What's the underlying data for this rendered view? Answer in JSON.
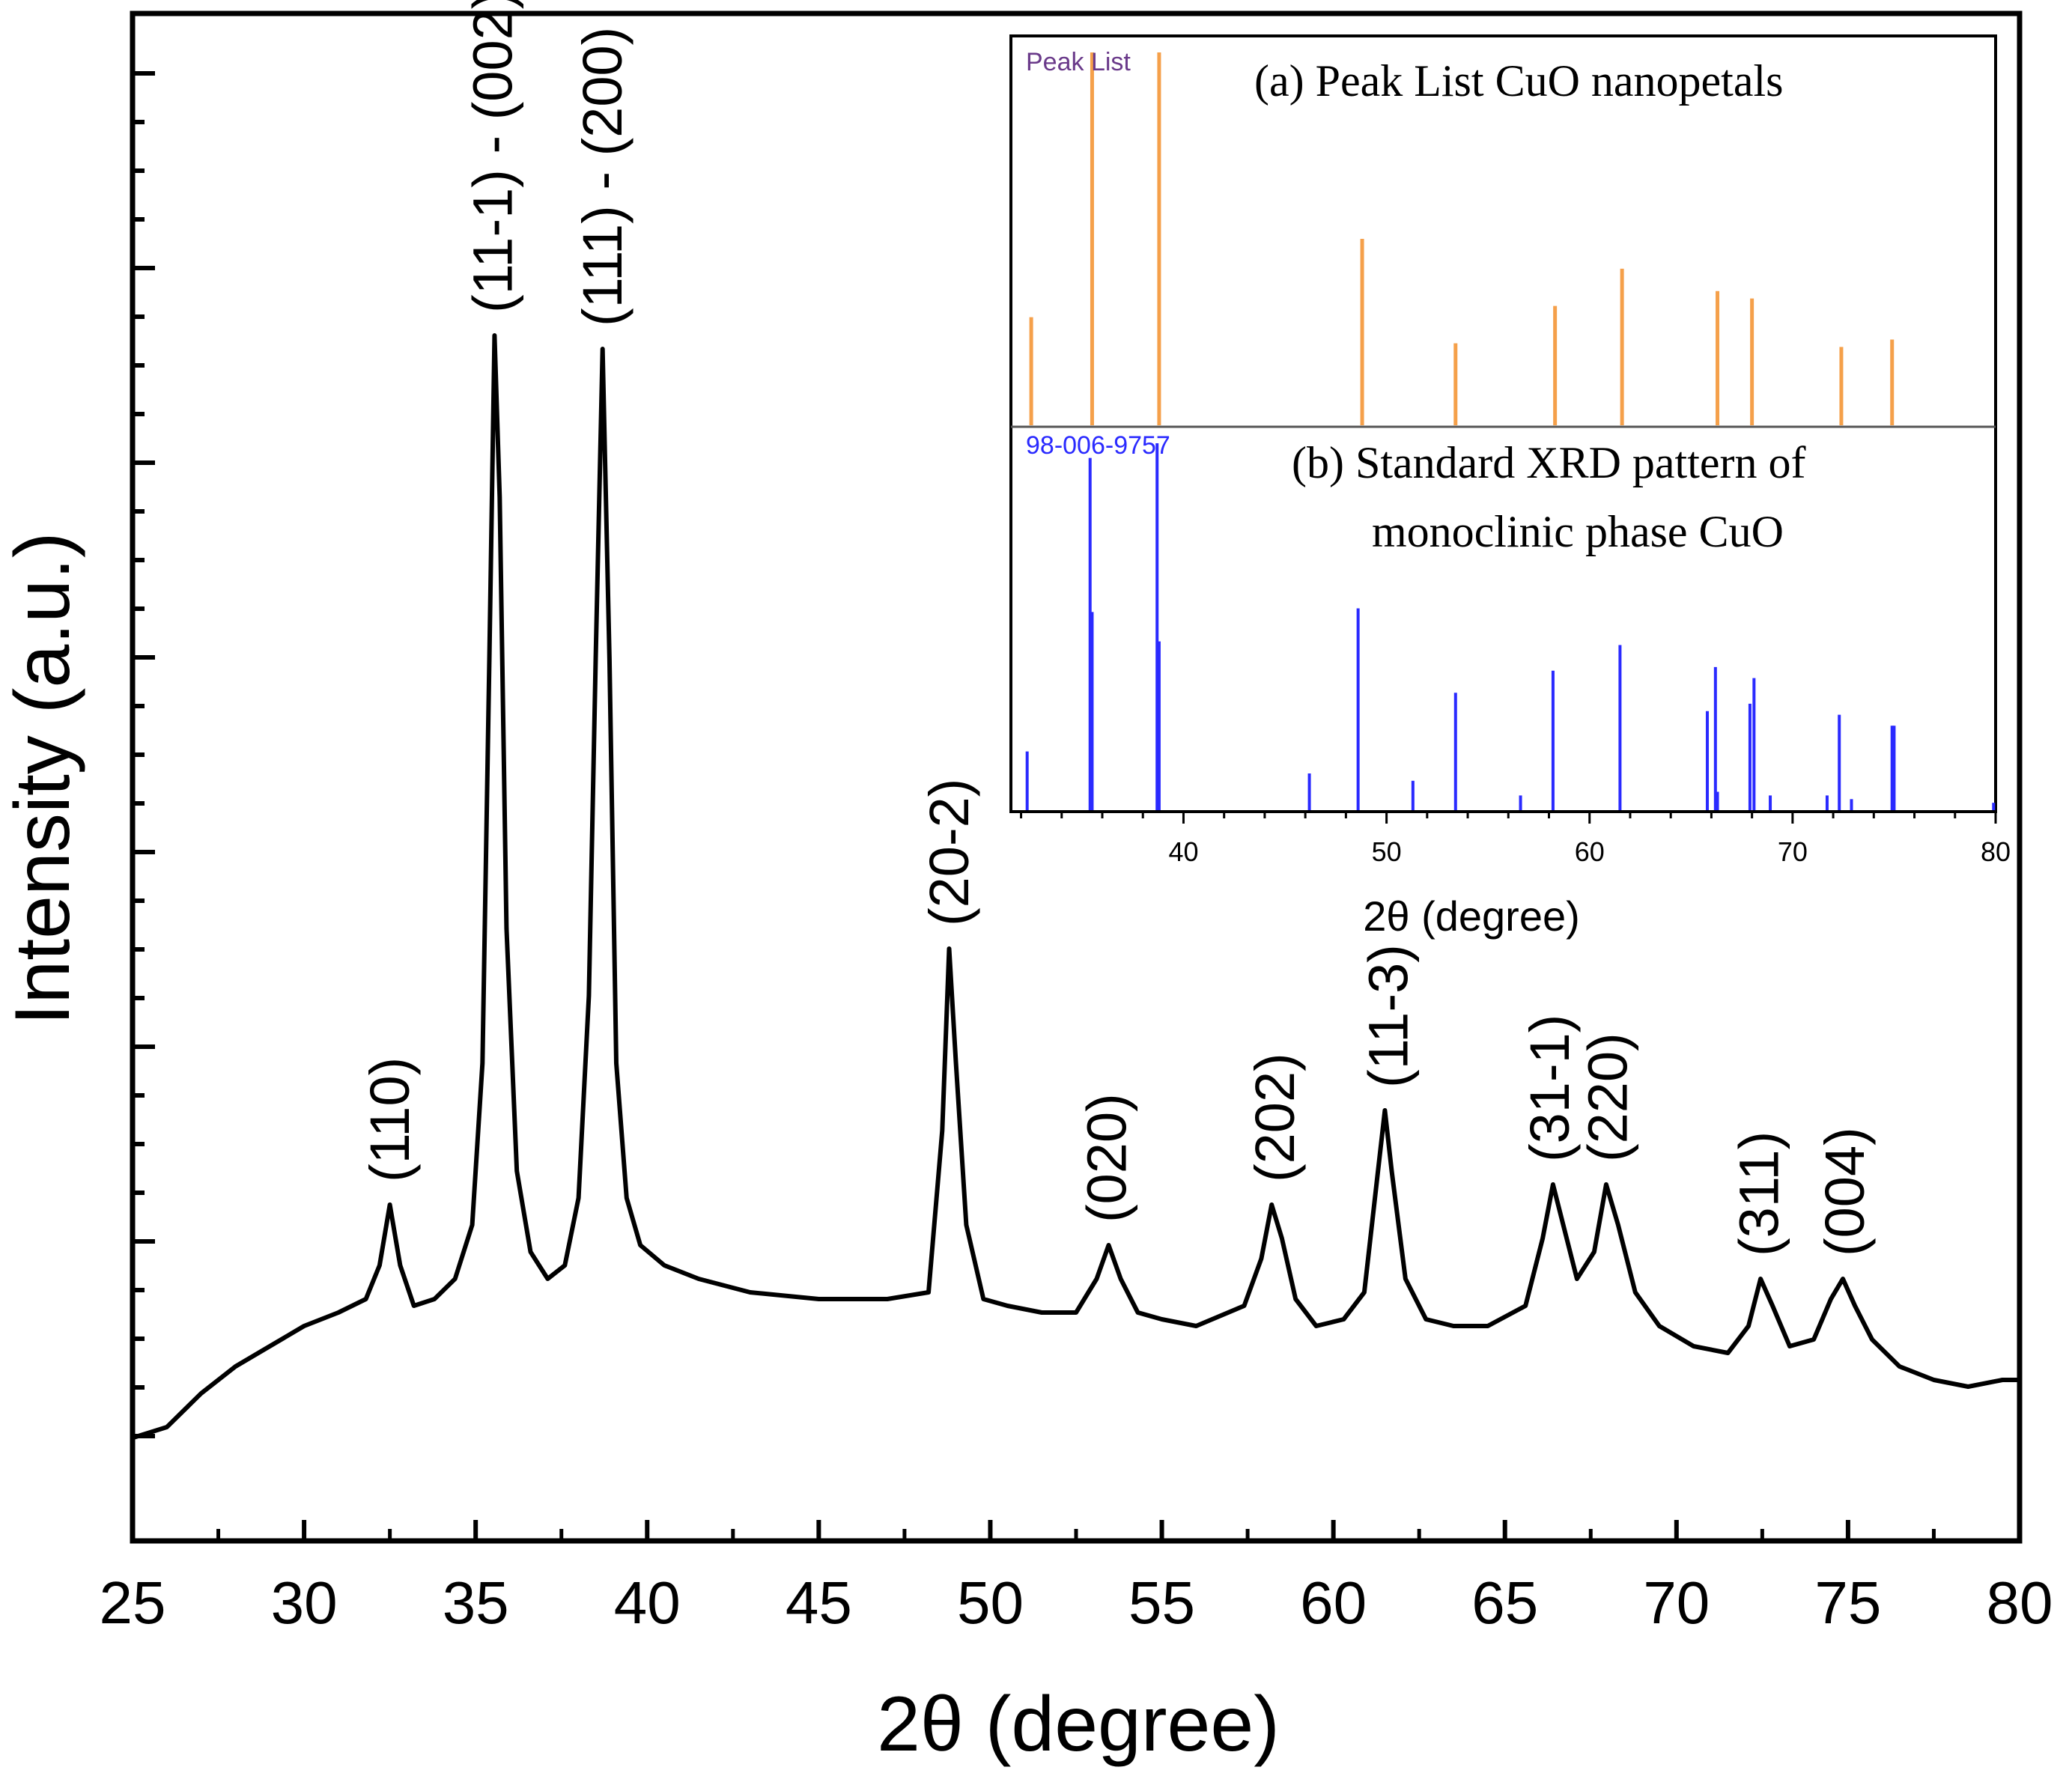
{
  "chart_data": [
    {
      "type": "line",
      "name": "main",
      "xlabel": "2θ (degree)",
      "ylabel": "Intensity (a.u.)",
      "xlim": [
        25,
        80
      ],
      "ylim": [
        0,
        100
      ],
      "x_ticks": [
        "25",
        "30",
        "35",
        "40",
        "45",
        "50",
        "55",
        "60",
        "65",
        "70",
        "75",
        "80"
      ],
      "series": [
        {
          "name": "CuO nanopetals",
          "color": "#000000",
          "x": [
            25,
            26,
            27,
            28,
            29,
            30,
            31,
            31.8,
            32.2,
            32.5,
            32.8,
            33.2,
            33.8,
            34.4,
            34.9,
            35.2,
            35.4,
            35.55,
            35.7,
            35.9,
            36.2,
            36.6,
            37.1,
            37.6,
            38.0,
            38.3,
            38.5,
            38.7,
            38.9,
            39.1,
            39.4,
            39.8,
            40.5,
            41.5,
            43,
            45,
            47,
            48.2,
            48.6,
            48.8,
            49.0,
            49.3,
            49.8,
            50.5,
            51.5,
            52.5,
            53.1,
            53.45,
            53.8,
            54.3,
            55,
            56,
            57.4,
            57.9,
            58.2,
            58.5,
            58.9,
            59.5,
            60.3,
            60.9,
            61.3,
            61.5,
            61.7,
            62.1,
            62.7,
            63.5,
            64.5,
            65.6,
            66.1,
            66.4,
            66.7,
            67.1,
            67.6,
            67.95,
            68.3,
            68.8,
            69.5,
            70.5,
            71.5,
            72.1,
            72.45,
            72.8,
            73.3,
            74.0,
            74.5,
            74.85,
            75.2,
            75.7,
            76.5,
            77.5,
            78.5,
            79.5,
            80
          ],
          "y": [
            2.2,
            3.0,
            5.5,
            7.5,
            9.0,
            10.5,
            11.5,
            12.5,
            15,
            19.5,
            15,
            12,
            12.5,
            14,
            18,
            30,
            60,
            84,
            72,
            40,
            22,
            16,
            14,
            15,
            20,
            35,
            60,
            83,
            60,
            30,
            20,
            16.5,
            15,
            14,
            13,
            12.5,
            12.5,
            13,
            25,
            38.5,
            30,
            18,
            12.5,
            12,
            11.5,
            11.5,
            14,
            16.5,
            14,
            11.5,
            11,
            10.5,
            12,
            15.5,
            19.5,
            17,
            12.5,
            10.5,
            11,
            13,
            22,
            26.5,
            22,
            14,
            11,
            10.5,
            10.5,
            12,
            17,
            21,
            18,
            14,
            16,
            21,
            18,
            13,
            10.5,
            9.0,
            8.5,
            10.5,
            14,
            12,
            9.0,
            9.5,
            12.5,
            14,
            12,
            9.5,
            7.5,
            6.5,
            6.0,
            6.5,
            6.5
          ]
        }
      ],
      "annotations": [
        {
          "text": "(110)",
          "x": 32.5
        },
        {
          "text": "(11-1) - (002)",
          "x": 35.5
        },
        {
          "text": "(111) - (200)",
          "x": 38.7
        },
        {
          "text": "(20-2)",
          "x": 48.8
        },
        {
          "text": "(020)",
          "x": 53.4
        },
        {
          "text": "(202)",
          "x": 58.3
        },
        {
          "text": "(11-3)",
          "x": 61.6
        },
        {
          "text": "(31-1)",
          "x": 66.3
        },
        {
          "text": "(220)",
          "x": 68.0
        },
        {
          "text": "(311)",
          "x": 72.4
        },
        {
          "text": "(004)",
          "x": 74.9
        }
      ]
    },
    {
      "type": "bar",
      "name": "inset",
      "xlabel": "2θ (degree)",
      "xlim": [
        31.5,
        80
      ],
      "x_ticks": [
        "40",
        "50",
        "60",
        "70",
        "80"
      ],
      "panels": [
        {
          "tag": "Peak List",
          "title": "(a) Peak List CuO nanopetals",
          "color": "#f5a04a",
          "tag_color": "#6a3a8a",
          "ylim": [
            0,
            100
          ],
          "x": [
            32.5,
            35.5,
            38.8,
            48.8,
            53.4,
            58.3,
            61.6,
            66.3,
            68.0,
            72.4,
            74.9
          ],
          "values": [
            29,
            100,
            100,
            50,
            22,
            32,
            42,
            36,
            34,
            21,
            23
          ]
        },
        {
          "tag": "98-006-9757",
          "title_line1": "(b) Standard XRD pattern of",
          "title_line2": "monoclinic phase CuO",
          "color": "#2a2aff",
          "tag_color": "#2a2aff",
          "ylim": [
            0,
            100
          ],
          "x": [
            32.3,
            35.4,
            35.5,
            38.7,
            38.8,
            46.2,
            48.6,
            51.3,
            53.4,
            56.6,
            58.2,
            61.5,
            65.8,
            66.2,
            66.3,
            67.9,
            68.1,
            68.9,
            71.7,
            72.3,
            72.9,
            74.9,
            75.0,
            79.9
          ],
          "values": [
            16,
            96,
            54,
            100,
            46,
            10,
            55,
            8,
            32,
            4,
            38,
            45,
            27,
            39,
            5,
            29,
            36,
            4,
            4,
            26,
            3,
            23,
            23,
            2
          ]
        }
      ]
    }
  ]
}
